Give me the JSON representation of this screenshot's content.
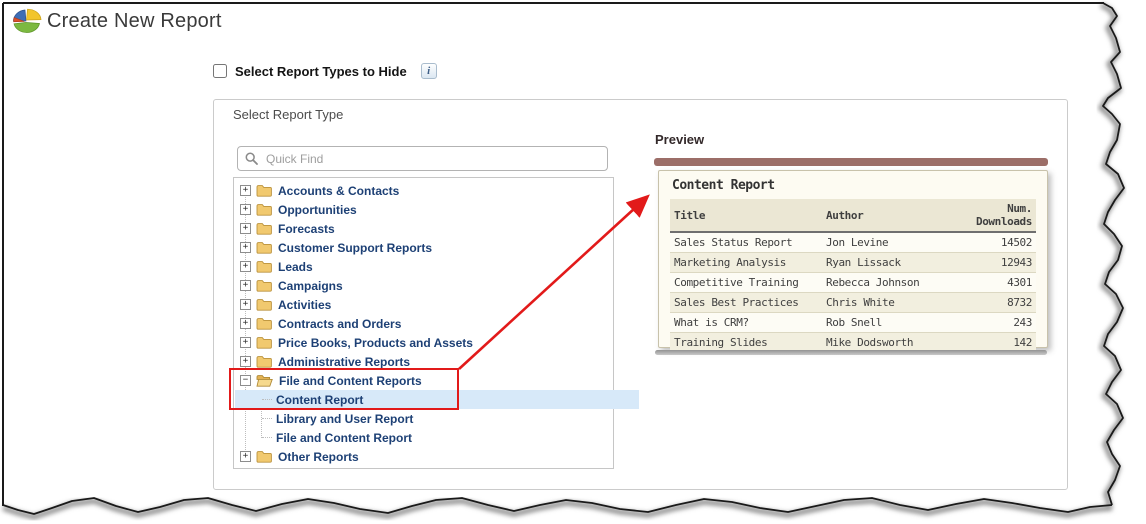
{
  "header": {
    "title": "Create New Report"
  },
  "hide_option": {
    "label": "Select Report Types to Hide",
    "checked": false,
    "info_icon": "i"
  },
  "report_type_panel": {
    "title": "Select Report Type"
  },
  "quick_find": {
    "placeholder": "Quick Find"
  },
  "tree": {
    "items": [
      {
        "label": "Accounts & Contacts",
        "toggle": "plus",
        "icon": "folder-closed",
        "child": false,
        "selected": false,
        "highlighted": false
      },
      {
        "label": "Opportunities",
        "toggle": "plus",
        "icon": "folder-closed",
        "child": false,
        "selected": false,
        "highlighted": false
      },
      {
        "label": "Forecasts",
        "toggle": "plus",
        "icon": "folder-closed",
        "child": false,
        "selected": false,
        "highlighted": false
      },
      {
        "label": "Customer Support Reports",
        "toggle": "plus",
        "icon": "folder-closed",
        "child": false,
        "selected": false,
        "highlighted": false
      },
      {
        "label": "Leads",
        "toggle": "plus",
        "icon": "folder-closed",
        "child": false,
        "selected": false,
        "highlighted": false
      },
      {
        "label": "Campaigns",
        "toggle": "plus",
        "icon": "folder-closed",
        "child": false,
        "selected": false,
        "highlighted": false
      },
      {
        "label": "Activities",
        "toggle": "plus",
        "icon": "folder-closed",
        "child": false,
        "selected": false,
        "highlighted": false
      },
      {
        "label": "Contracts and Orders",
        "toggle": "plus",
        "icon": "folder-closed",
        "child": false,
        "selected": false,
        "highlighted": false
      },
      {
        "label": "Price Books, Products and Assets",
        "toggle": "plus",
        "icon": "folder-closed",
        "child": false,
        "selected": false,
        "highlighted": false
      },
      {
        "label": "Administrative Reports",
        "toggle": "plus",
        "icon": "folder-closed",
        "child": false,
        "selected": false,
        "highlighted": false
      },
      {
        "label": "File and Content Reports",
        "toggle": "minus",
        "icon": "folder-open",
        "child": false,
        "selected": false,
        "highlighted": true
      },
      {
        "label": "Content Report",
        "toggle": "none",
        "icon": "none",
        "child": true,
        "selected": true,
        "highlighted": true
      },
      {
        "label": "Library and User Report",
        "toggle": "none",
        "icon": "none",
        "child": true,
        "selected": false,
        "highlighted": false
      },
      {
        "label": "File and Content Report",
        "toggle": "none",
        "icon": "none",
        "child": true,
        "selected": false,
        "highlighted": false
      },
      {
        "label": "Other Reports",
        "toggle": "plus",
        "icon": "folder-closed",
        "child": false,
        "selected": false,
        "highlighted": false
      }
    ]
  },
  "preview": {
    "label": "Preview",
    "report_title": "Content Report",
    "columns": [
      "Title",
      "Author",
      "Num. Downloads"
    ],
    "rows": [
      [
        "Sales Status Report",
        "Jon Levine",
        "14502"
      ],
      [
        "Marketing Analysis",
        "Ryan Lissack",
        "12943"
      ],
      [
        "Competitive Training",
        "Rebecca Johnson",
        "4301"
      ],
      [
        "Sales Best Practices",
        "Chris White",
        "8732"
      ],
      [
        "What is CRM?",
        "Rob Snell",
        "243"
      ],
      [
        "Training Slides",
        "Mike Dodsworth",
        "142"
      ]
    ]
  },
  "colors": {
    "annotation_red": "#e21a1a",
    "preview_bar_maroon": "#9c6e68",
    "selection_blue": "#d7e9f9",
    "tree_text_navy": "#1d4075"
  }
}
